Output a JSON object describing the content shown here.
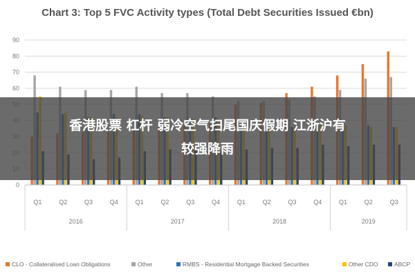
{
  "overlay": {
    "line1": "香港股票 杠杆 弱冷空气扫尾国庆假期 江浙沪有",
    "line2": "较强降雨"
  },
  "chart_data": {
    "type": "bar",
    "title": "Chart 3: Top 5 FVC Activity types (Total Debt Securities Issued €bn)",
    "ylim": [
      0,
      90
    ],
    "yticks": [
      0,
      10,
      20,
      30,
      40,
      50,
      60,
      70,
      80,
      90
    ],
    "grid": true,
    "legend_position": "bottom",
    "categories": [
      "Q1",
      "Q2",
      "Q3",
      "Q4",
      "Q1",
      "Q2",
      "Q3",
      "Q4",
      "Q1",
      "Q2",
      "Q3",
      "Q4",
      "Q1",
      "Q2",
      "Q3"
    ],
    "groups": [
      {
        "label": "2016",
        "count": 4
      },
      {
        "label": "2017",
        "count": 4
      },
      {
        "label": "2018",
        "count": 4
      },
      {
        "label": "2019",
        "count": 3
      }
    ],
    "series": [
      {
        "name": "CLO - Collateralised Loan Obligations",
        "color": "#e8762c",
        "values": [
          30,
          32,
          33,
          34,
          35,
          36,
          37,
          38,
          50,
          51,
          57,
          61,
          68,
          75,
          83
        ]
      },
      {
        "name": "Other",
        "color": "#a5a5a5",
        "values": [
          68,
          61,
          59,
          59,
          61,
          57,
          57,
          55,
          52,
          52,
          53,
          55,
          59,
          66,
          67
        ]
      },
      {
        "name": "RMBS - Residential Mortgage Backed Securities",
        "color": "#2e75b6",
        "values": [
          45,
          44,
          42,
          44,
          44,
          42,
          41,
          42,
          40,
          38,
          36,
          37,
          36,
          37,
          36
        ]
      },
      {
        "name": "Other CDO",
        "color": "#ffc000",
        "values": [
          55,
          45,
          42,
          42,
          43,
          42,
          41,
          41,
          39,
          35,
          36,
          37,
          37,
          36,
          36
        ]
      },
      {
        "name": "ABCP",
        "color": "#264478",
        "values": [
          21,
          19,
          16,
          17,
          21,
          22,
          22,
          21,
          22,
          23,
          23,
          25,
          24,
          25,
          25
        ]
      }
    ]
  }
}
